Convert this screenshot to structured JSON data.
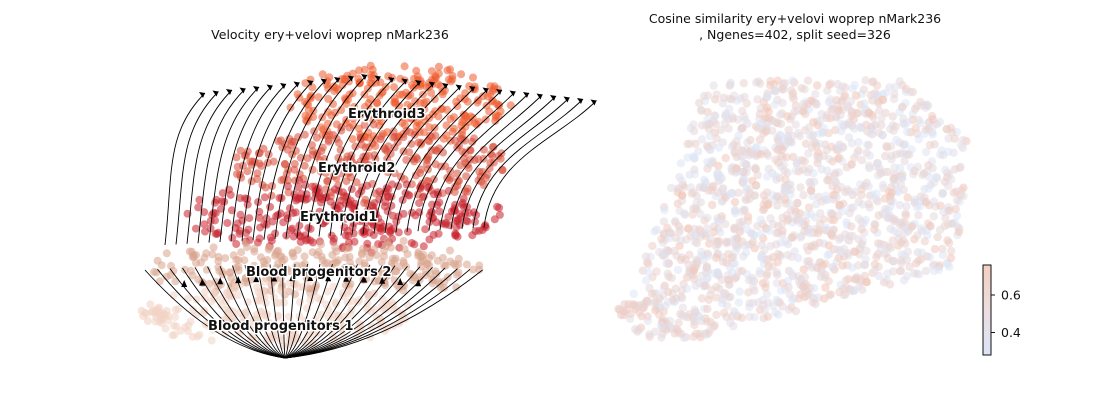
{
  "chart_data": [
    {
      "type": "scatter",
      "subtype": "velocity-stream-embedding",
      "title": "Velocity ery+velovi woprep nMark236",
      "axes_visible": false,
      "legend": "on data",
      "colors": {
        "Blood progenitors 1": "#f2d4c4",
        "Blood progenitors 2": "#d9a48c",
        "Erythroid1": "#c8202c",
        "Erythroid2": "#d84a36",
        "Erythroid3": "#ee5a2c"
      },
      "clusters": [
        {
          "name": "Erythroid3"
        },
        {
          "name": "Erythroid2"
        },
        {
          "name": "Erythroid1"
        },
        {
          "name": "Blood progenitors 2"
        },
        {
          "name": "Blood progenitors 1"
        }
      ]
    },
    {
      "type": "scatter",
      "subtype": "continuous-colored-embedding",
      "title": "Cosine similarity ery+velovi woprep nMark236\n, Ngenes=402, split seed=326",
      "axes_visible": false,
      "colorbar": {
        "range": [
          0.28,
          0.76
        ],
        "ticks": [
          "0.4",
          "0.6"
        ],
        "tick_values": [
          0.4,
          0.6
        ],
        "cmap_low": "#dde6f7",
        "cmap_high": "#f2c5b5"
      }
    }
  ]
}
